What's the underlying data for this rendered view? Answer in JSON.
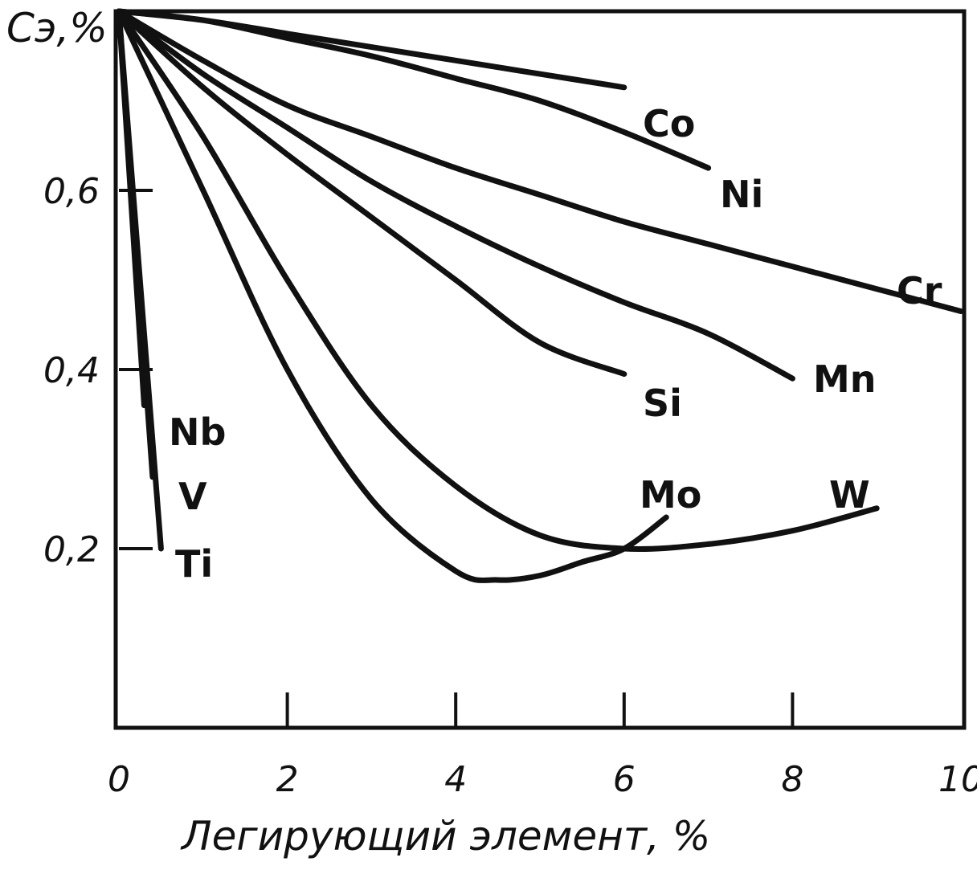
{
  "chart_data": {
    "type": "line",
    "title": "",
    "ylabel": "Сэ,%",
    "xlabel": "Легирующий элемент, %",
    "xlim": [
      0,
      10
    ],
    "ylim": [
      0,
      0.8
    ],
    "grid": false,
    "x_ticks": [
      0,
      2,
      4,
      6,
      8,
      10
    ],
    "x_tick_labels": [
      "0",
      "2",
      "4",
      "6",
      "8",
      "10"
    ],
    "y_ticks": [
      0.2,
      0.4,
      0.6
    ],
    "y_tick_labels": [
      "0,2",
      "0,4",
      "0,6"
    ],
    "color": "#111111",
    "series": [
      {
        "name": "Co",
        "x": [
          0,
          1,
          2,
          3,
          4,
          5,
          6
        ],
        "y": [
          0.8,
          0.79,
          0.775,
          0.76,
          0.745,
          0.73,
          0.715
        ]
      },
      {
        "name": "Ni",
        "x": [
          0,
          1,
          2,
          3,
          4,
          5,
          6,
          7
        ],
        "y": [
          0.8,
          0.79,
          0.77,
          0.75,
          0.725,
          0.7,
          0.665,
          0.625
        ]
      },
      {
        "name": "Cr",
        "x": [
          0,
          1,
          2,
          3,
          4,
          5,
          6,
          7,
          8,
          9,
          10
        ],
        "y": [
          0.8,
          0.745,
          0.695,
          0.66,
          0.625,
          0.595,
          0.565,
          0.54,
          0.515,
          0.49,
          0.465
        ]
      },
      {
        "name": "Mn",
        "x": [
          0,
          1,
          2,
          3,
          4,
          5,
          6,
          7,
          8
        ],
        "y": [
          0.8,
          0.73,
          0.67,
          0.61,
          0.56,
          0.515,
          0.475,
          0.44,
          0.39
        ]
      },
      {
        "name": "Si",
        "x": [
          0,
          1,
          2,
          3,
          4,
          5,
          6
        ],
        "y": [
          0.8,
          0.715,
          0.64,
          0.57,
          0.5,
          0.43,
          0.395
        ]
      },
      {
        "name": "W",
        "x": [
          0,
          1,
          2,
          3,
          4,
          5,
          6,
          7,
          8,
          9
        ],
        "y": [
          0.8,
          0.66,
          0.5,
          0.36,
          0.27,
          0.215,
          0.2,
          0.205,
          0.22,
          0.245
        ]
      },
      {
        "name": "Mo",
        "x": [
          0,
          1,
          2,
          3,
          4,
          4.5,
          5,
          5.5,
          6,
          6.5
        ],
        "y": [
          0.8,
          0.6,
          0.4,
          0.255,
          0.175,
          0.165,
          0.17,
          0.185,
          0.2,
          0.235
        ]
      },
      {
        "name": "Nb",
        "x": [
          0,
          0.3
        ],
        "y": [
          0.8,
          0.36
        ]
      },
      {
        "name": "V",
        "x": [
          0,
          0.4
        ],
        "y": [
          0.8,
          0.28
        ]
      },
      {
        "name": "Ti",
        "x": [
          0,
          0.5
        ],
        "y": [
          0.8,
          0.2
        ]
      }
    ]
  }
}
